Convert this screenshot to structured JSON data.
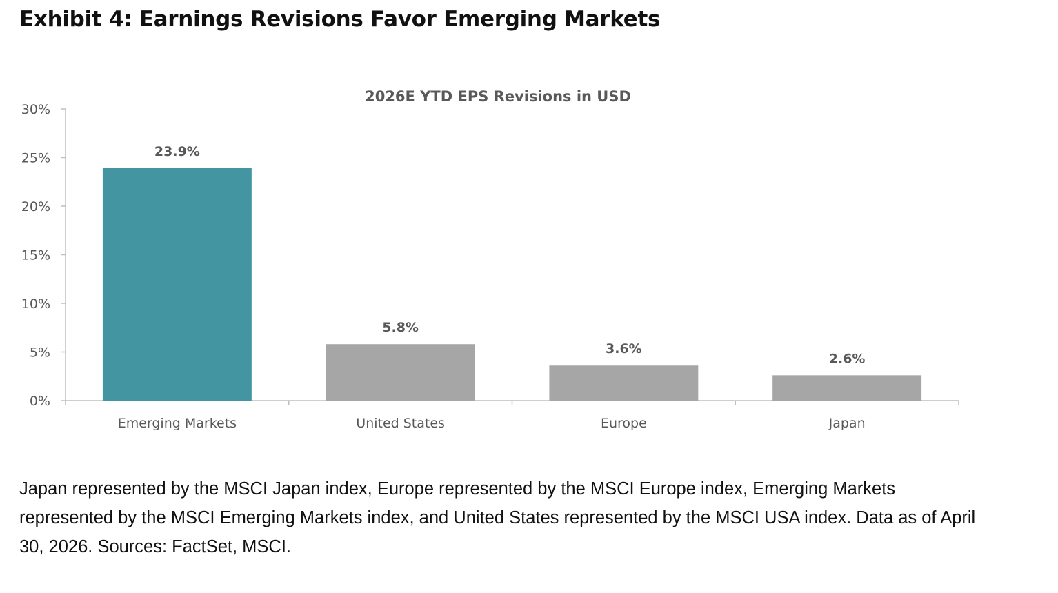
{
  "exhibit": {
    "title": "Exhibit 4: Earnings Revisions Favor Emerging Markets"
  },
  "chart_data": {
    "type": "bar",
    "title": "2026E YTD EPS Revisions in USD",
    "categories": [
      "Emerging Markets",
      "United States",
      "Europe",
      "Japan"
    ],
    "values": [
      23.9,
      5.8,
      3.6,
      2.6
    ],
    "data_labels": [
      "23.9%",
      "5.8%",
      "3.6%",
      "2.6%"
    ],
    "value_unit": "%",
    "ylim": [
      0,
      30
    ],
    "yticks": [
      0,
      5,
      10,
      15,
      20,
      25,
      30
    ],
    "ytick_labels": [
      "0%",
      "5%",
      "10%",
      "15%",
      "20%",
      "25%",
      "30%"
    ],
    "xlabel": "",
    "ylabel": "",
    "grid": false,
    "legend": "none",
    "bar_colors": [
      "#4396a1",
      "#a6a6a6",
      "#a6a6a6",
      "#a6a6a6"
    ],
    "axis_color": "#bfbfbf",
    "text_color": "#595959"
  },
  "caption": {
    "text": "Japan represented by the MSCI Japan index, Europe represented by the MSCI Europe index, Emerging Markets represented by the MSCI Emerging Markets index, and United States represented by the MSCI USA index. Data as of April 30, 2026. Sources: FactSet, MSCI."
  }
}
